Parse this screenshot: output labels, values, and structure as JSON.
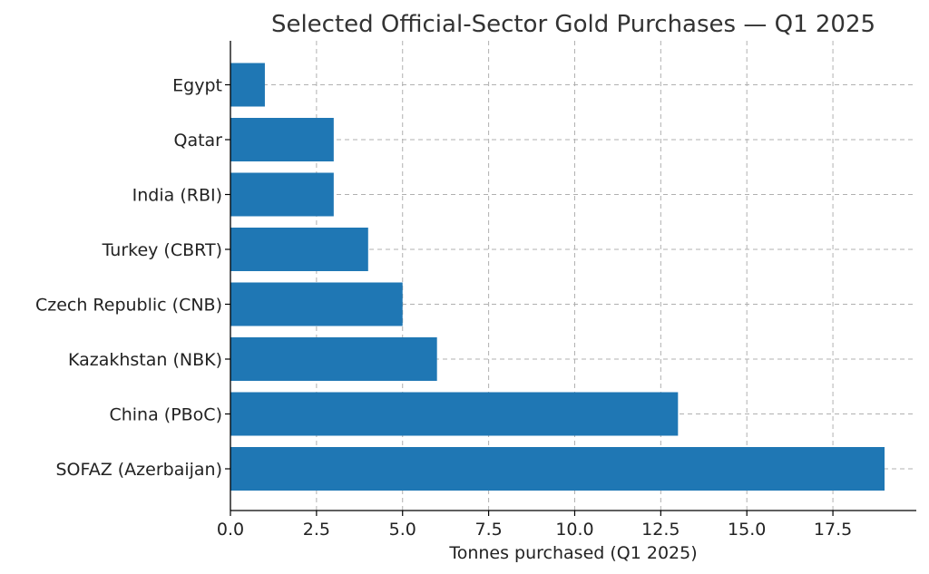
{
  "chart_data": {
    "type": "bar",
    "orientation": "horizontal",
    "title": "Selected Official-Sector Gold Purchases — Q1 2025",
    "xlabel": "Tonnes purchased (Q1 2025)",
    "ylabel": "",
    "categories": [
      "SOFAZ (Azerbaijan)",
      "China (PBoC)",
      "Kazakhstan (NBK)",
      "Czech Republic (CNB)",
      "Turkey (CBRT)",
      "India (RBI)",
      "Qatar",
      "Egypt"
    ],
    "values": [
      19,
      13,
      6,
      5,
      4,
      3,
      3,
      1
    ],
    "xlim": [
      0,
      20
    ],
    "xticks": [
      0,
      2.5,
      5,
      7.5,
      10,
      12.5,
      15,
      17.5
    ],
    "xtick_labels": [
      "0.0",
      "2.5",
      "5.0",
      "7.5",
      "10.0",
      "12.5",
      "15.0",
      "17.5"
    ],
    "bar_color": "#1f77b4",
    "grid": true,
    "legend": false
  }
}
